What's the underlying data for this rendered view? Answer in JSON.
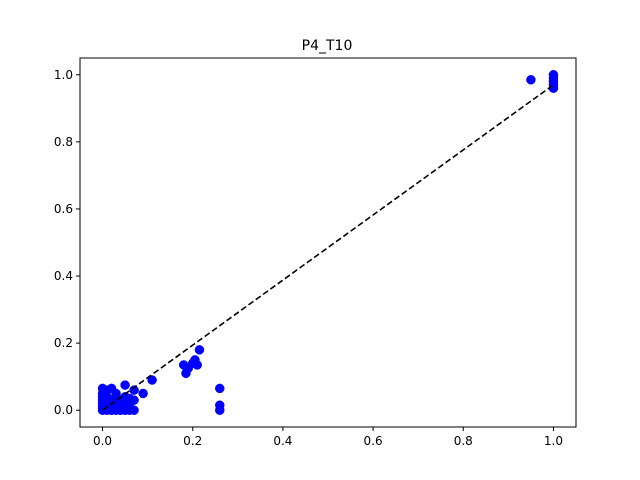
{
  "chart_data": {
    "type": "scatter",
    "title": "P4_T10",
    "xlabel": "",
    "ylabel": "",
    "xlim": [
      -0.05,
      1.05
    ],
    "ylim": [
      -0.05,
      1.05
    ],
    "x_ticks": [
      "0.0",
      "0.2",
      "0.4",
      "0.6",
      "0.8",
      "1.0"
    ],
    "y_ticks": [
      "0.0",
      "0.2",
      "0.4",
      "0.6",
      "0.8",
      "1.0"
    ],
    "grid": false,
    "legend": "none",
    "marker_color": "#0000ff",
    "reference_line": {
      "style": "dashed",
      "color": "#000000",
      "x": [
        0.0,
        1.0
      ],
      "y": [
        0.0,
        0.97
      ]
    },
    "series": [
      {
        "points": [
          [
            0.0,
            0.0
          ],
          [
            0.0,
            0.01
          ],
          [
            0.0,
            0.02
          ],
          [
            0.0,
            0.03
          ],
          [
            0.0,
            0.04
          ],
          [
            0.0,
            0.05
          ],
          [
            0.0,
            0.065
          ],
          [
            0.01,
            0.0
          ],
          [
            0.01,
            0.02
          ],
          [
            0.01,
            0.04
          ],
          [
            0.01,
            0.06
          ],
          [
            0.02,
            0.0
          ],
          [
            0.02,
            0.01
          ],
          [
            0.02,
            0.03
          ],
          [
            0.02,
            0.065
          ],
          [
            0.03,
            0.0
          ],
          [
            0.03,
            0.02
          ],
          [
            0.03,
            0.035
          ],
          [
            0.03,
            0.05
          ],
          [
            0.04,
            0.0
          ],
          [
            0.04,
            0.01
          ],
          [
            0.04,
            0.03
          ],
          [
            0.05,
            0.0
          ],
          [
            0.05,
            0.02
          ],
          [
            0.05,
            0.04
          ],
          [
            0.05,
            0.075
          ],
          [
            0.06,
            0.0
          ],
          [
            0.06,
            0.02
          ],
          [
            0.06,
            0.035
          ],
          [
            0.07,
            0.0
          ],
          [
            0.07,
            0.03
          ],
          [
            0.07,
            0.06
          ],
          [
            0.09,
            0.05
          ],
          [
            0.11,
            0.09
          ],
          [
            0.18,
            0.135
          ],
          [
            0.185,
            0.11
          ],
          [
            0.19,
            0.125
          ],
          [
            0.2,
            0.14
          ],
          [
            0.205,
            0.15
          ],
          [
            0.21,
            0.135
          ],
          [
            0.215,
            0.18
          ],
          [
            0.26,
            0.0
          ],
          [
            0.26,
            0.015
          ],
          [
            0.26,
            0.065
          ],
          [
            0.95,
            0.985
          ],
          [
            1.0,
            0.96
          ],
          [
            1.0,
            0.97
          ],
          [
            1.0,
            0.98
          ],
          [
            1.0,
            0.99
          ],
          [
            1.0,
            1.0
          ]
        ]
      }
    ]
  }
}
